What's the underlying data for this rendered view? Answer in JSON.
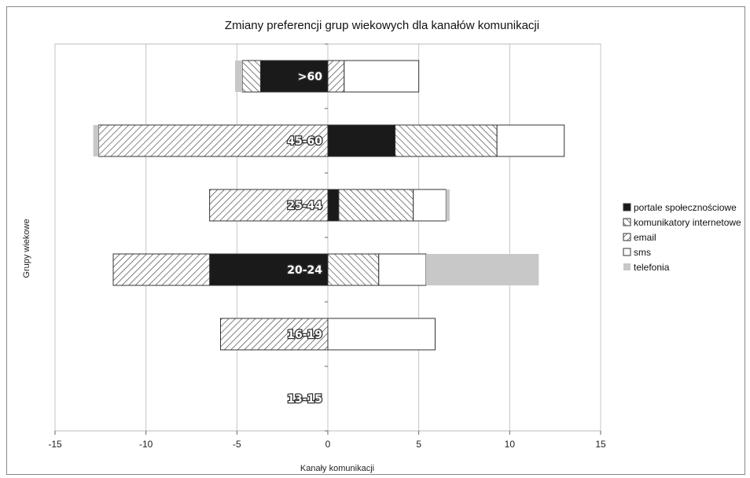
{
  "chart_data": {
    "type": "bar",
    "orientation": "horizontal",
    "stacked": true,
    "title": "Zmiany preferencji grup wiekowych dla kanałów komunikacji",
    "xlabel": "Kanały komunikacji",
    "ylabel": "Grupy wiekowe",
    "xlim": [
      -15,
      15
    ],
    "xticks": [
      "-15",
      "-10",
      "-5",
      "0",
      "5",
      "10",
      "15"
    ],
    "grid": "vertical",
    "legend_position": "right",
    "categories": [
      ">60",
      "45-60",
      "25-44",
      "20-24",
      "16-19",
      "13-15"
    ],
    "series": [
      {
        "name": "portale społecznościowe",
        "values": [
          -3.7,
          3.7,
          0.6,
          -6.5,
          0,
          0
        ],
        "color": "#1a1a1a",
        "pattern": "solid"
      },
      {
        "name": "komunikatory internetowe",
        "values": [
          -1.0,
          5.6,
          4.1,
          2.8,
          0,
          0
        ],
        "color": "#ffffff",
        "pattern": "backslash-hatch"
      },
      {
        "name": "email",
        "values": [
          0.9,
          -12.6,
          -6.5,
          -5.3,
          -5.9,
          0
        ],
        "color": "#ffffff",
        "pattern": "slash-hatch"
      },
      {
        "name": "sms",
        "values": [
          4.1,
          3.7,
          1.8,
          2.6,
          5.9,
          0
        ],
        "color": "#ffffff",
        "pattern": "outline"
      },
      {
        "name": "telefonia",
        "values": [
          -0.4,
          -0.3,
          0.2,
          6.2,
          0,
          0
        ],
        "color": "#c8c8c8",
        "pattern": "solid"
      }
    ]
  }
}
